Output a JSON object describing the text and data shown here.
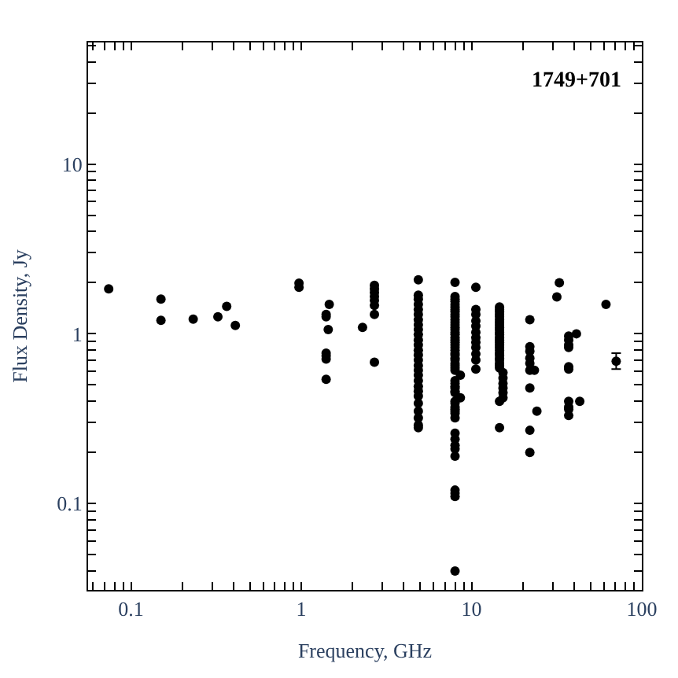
{
  "chart_data": {
    "type": "scatter",
    "xlabel": "Frequency, GHz",
    "ylabel": "Flux Density, Jy",
    "annotations": [
      "1749+701"
    ],
    "log": "xy",
    "marker": "circle",
    "xlim": [
      0.056,
      100
    ],
    "ylim": [
      0.031,
      52
    ],
    "xticks": [
      {
        "value": 0.06,
        "label": null
      },
      {
        "value": 0.07,
        "label": null
      },
      {
        "value": 0.08,
        "label": null
      },
      {
        "value": 0.09,
        "label": null
      },
      0.1,
      {
        "value": 0.2,
        "label": null
      },
      {
        "value": 0.3,
        "label": null
      },
      {
        "value": 0.4,
        "label": null
      },
      {
        "value": 0.5,
        "label": null
      },
      {
        "value": 0.6,
        "label": null
      },
      {
        "value": 0.7,
        "label": null
      },
      {
        "value": 0.8,
        "label": null
      },
      {
        "value": 0.9,
        "label": null
      },
      1,
      {
        "value": 2,
        "label": null
      },
      {
        "value": 3,
        "label": null
      },
      {
        "value": 4,
        "label": null
      },
      {
        "value": 5,
        "label": null
      },
      {
        "value": 6,
        "label": null
      },
      {
        "value": 7,
        "label": null
      },
      {
        "value": 8,
        "label": null
      },
      {
        "value": 9,
        "label": null
      },
      10,
      {
        "value": 20,
        "label": null
      },
      {
        "value": 30,
        "label": null
      },
      {
        "value": 40,
        "label": null
      },
      {
        "value": 50,
        "label": null
      },
      {
        "value": 60,
        "label": null
      },
      {
        "value": 70,
        "label": null
      },
      {
        "value": 80,
        "label": null
      },
      {
        "value": 90,
        "label": null
      },
      100
    ],
    "yticks": [
      {
        "value": 0.04,
        "label": null
      },
      {
        "value": 0.05,
        "label": null
      },
      {
        "value": 0.06,
        "label": null
      },
      {
        "value": 0.07,
        "label": null
      },
      {
        "value": 0.08,
        "label": null
      },
      {
        "value": 0.09,
        "label": null
      },
      0.1,
      {
        "value": 0.2,
        "label": null
      },
      {
        "value": 0.3,
        "label": null
      },
      {
        "value": 0.4,
        "label": null
      },
      {
        "value": 0.5,
        "label": null
      },
      {
        "value": 0.6,
        "label": null
      },
      {
        "value": 0.7,
        "label": null
      },
      {
        "value": 0.8,
        "label": null
      },
      {
        "value": 0.9,
        "label": null
      },
      1,
      {
        "value": 2,
        "label": null
      },
      {
        "value": 3,
        "label": null
      },
      {
        "value": 4,
        "label": null
      },
      {
        "value": 5,
        "label": null
      },
      {
        "value": 6,
        "label": null
      },
      {
        "value": 7,
        "label": null
      },
      {
        "value": 8,
        "label": null
      },
      {
        "value": 9,
        "label": null
      },
      10,
      {
        "value": 20,
        "label": null
      },
      {
        "value": 30,
        "label": null
      },
      {
        "value": 40,
        "label": null
      },
      {
        "value": 50,
        "label": null
      }
    ],
    "series": [
      {
        "color": "#000000",
        "x": [
          0.074,
          0.15,
          0.15,
          0.232,
          0.324,
          0.365,
          0.41,
          0.97,
          0.97,
          1.4,
          1.4,
          1.4,
          1.4,
          1.4,
          1.4,
          1.44,
          1.46,
          2.29,
          2.69,
          2.69,
          2.69,
          2.69,
          2.69,
          2.69,
          2.69,
          2.69,
          4.87,
          4.87,
          4.87,
          4.87,
          4.87,
          4.87,
          4.87,
          4.87,
          4.87,
          4.87,
          4.87,
          4.87,
          4.87,
          4.87,
          4.87,
          4.87,
          4.87,
          4.87,
          4.87,
          4.87,
          4.87,
          4.87,
          4.87,
          4.87,
          4.87,
          4.87,
          4.87,
          8.0,
          8.0,
          8.0,
          8.0,
          8.0,
          8.0,
          8.0,
          8.0,
          8.0,
          8.0,
          8.0,
          8.0,
          8.0,
          8.0,
          8.0,
          8.0,
          8.0,
          8.0,
          8.0,
          8.0,
          8.0,
          8.0,
          8.0,
          8.0,
          8.0,
          8.0,
          8.0,
          8.0,
          8.0,
          8.0,
          8.0,
          8.0,
          8.0,
          8.0,
          8.0,
          8.0,
          8.0,
          8.0,
          8.0,
          8.0,
          8.0,
          8.0,
          8.0,
          8.0,
          8.0,
          8.0,
          8.0,
          8.0,
          8.0,
          8.0,
          8.0,
          8.0,
          8.0,
          8.6,
          8.6,
          10.6,
          10.6,
          10.6,
          10.6,
          10.6,
          10.6,
          10.6,
          10.6,
          10.6,
          10.6,
          10.6,
          10.6,
          14.6,
          14.6,
          14.6,
          14.6,
          14.6,
          14.6,
          14.6,
          14.6,
          14.6,
          14.6,
          14.6,
          14.6,
          14.6,
          14.6,
          14.6,
          14.6,
          14.6,
          14.6,
          14.6,
          14.6,
          14.6,
          14.6,
          14.6,
          14.6,
          14.6,
          14.6,
          14.6,
          15.3,
          15.3,
          15.3,
          15.3,
          15.3,
          15.3,
          22.0,
          22.0,
          22.0,
          22.0,
          22.0,
          22.0,
          22.0,
          22.0,
          22.0,
          23.4,
          24.2,
          31.7,
          32.8,
          37.2,
          37.2,
          37.2,
          37.2,
          37.2,
          37.2,
          37.2,
          37.2,
          37.2,
          37.2,
          41.3,
          43.2,
          61.6
        ],
        "values": [
          1.84,
          1.6,
          1.2,
          1.22,
          1.26,
          1.45,
          1.12,
          1.99,
          1.88,
          1.3,
          1.26,
          0.77,
          0.74,
          0.71,
          0.54,
          1.06,
          1.49,
          1.09,
          1.93,
          1.84,
          1.75,
          1.66,
          1.57,
          1.47,
          1.3,
          0.68,
          2.08,
          1.69,
          1.6,
          1.49,
          1.39,
          1.3,
          1.21,
          1.13,
          1.06,
          0.99,
          0.92,
          0.86,
          0.8,
          0.75,
          0.7,
          0.65,
          0.61,
          0.57,
          0.53,
          0.49,
          0.46,
          0.43,
          0.39,
          0.35,
          0.32,
          0.29,
          0.28,
          2.01,
          1.66,
          1.6,
          1.55,
          1.49,
          1.44,
          1.39,
          1.35,
          1.3,
          1.26,
          1.21,
          1.17,
          1.13,
          1.09,
          1.06,
          1.02,
          0.99,
          0.95,
          0.92,
          0.89,
          0.86,
          0.83,
          0.8,
          0.77,
          0.75,
          0.72,
          0.7,
          0.67,
          0.65,
          0.63,
          0.61,
          0.53,
          0.51,
          0.49,
          0.48,
          0.46,
          0.45,
          0.4,
          0.39,
          0.37,
          0.36,
          0.35,
          0.34,
          0.32,
          0.26,
          0.24,
          0.22,
          0.21,
          0.19,
          0.12,
          0.115,
          0.11,
          0.04,
          0.57,
          0.42,
          1.88,
          1.39,
          1.3,
          1.19,
          1.11,
          1.02,
          0.95,
          0.89,
          0.83,
          0.76,
          0.7,
          0.62,
          1.44,
          1.39,
          1.35,
          1.3,
          1.26,
          1.21,
          1.17,
          1.13,
          1.09,
          1.06,
          1.02,
          0.99,
          0.95,
          0.92,
          0.89,
          0.86,
          0.83,
          0.8,
          0.77,
          0.75,
          0.72,
          0.7,
          0.67,
          0.65,
          0.63,
          0.4,
          0.28,
          0.59,
          0.55,
          0.51,
          0.48,
          0.45,
          0.42,
          1.21,
          0.84,
          0.79,
          0.72,
          0.67,
          0.61,
          0.48,
          0.27,
          0.2,
          0.61,
          0.35,
          1.65,
          2.0,
          0.97,
          0.92,
          0.86,
          0.83,
          0.64,
          0.62,
          0.4,
          0.37,
          0.36,
          0.33,
          1.0,
          0.4,
          1.49
        ]
      },
      {
        "color": "#000000",
        "x": [
          70.7
        ],
        "values": [
          0.69
        ],
        "errors": [
          [
            0.62,
            0.77
          ]
        ]
      }
    ]
  }
}
